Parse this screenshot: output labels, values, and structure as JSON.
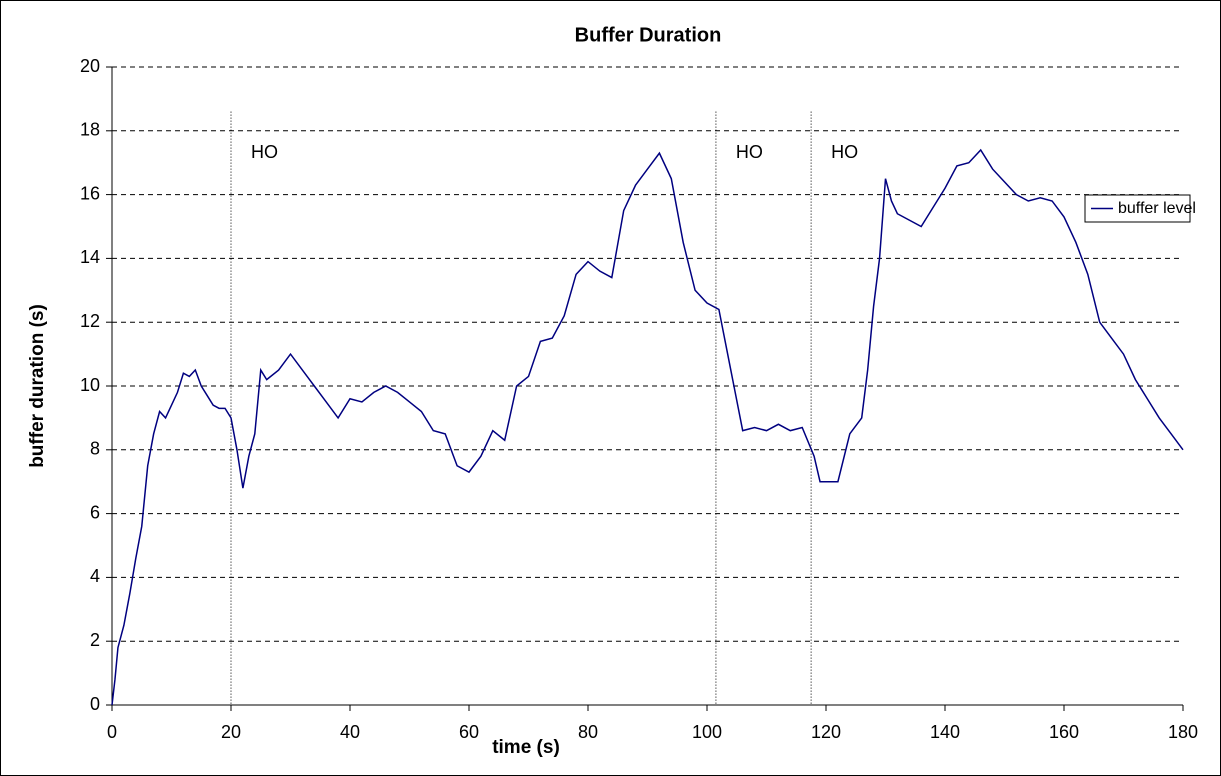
{
  "chart_data": {
    "type": "line",
    "title": "Buffer Duration",
    "x_label": "time (s)",
    "y_label": "buffer duration (s)",
    "x": [
      0,
      0.5,
      1,
      2,
      3,
      4,
      5,
      6,
      7,
      8,
      9,
      10,
      11,
      12,
      13,
      14,
      15,
      16,
      17,
      18,
      19,
      20,
      21,
      22,
      23,
      24,
      25,
      26,
      28,
      30,
      32,
      34,
      36,
      38,
      40,
      42,
      44,
      46,
      48,
      50,
      52,
      54,
      56,
      58,
      60,
      62,
      64,
      66,
      68,
      70,
      72,
      74,
      76,
      78,
      80,
      82,
      84,
      86,
      88,
      90,
      92,
      94,
      96,
      98,
      100,
      102,
      104,
      106,
      108,
      110,
      112,
      114,
      116,
      118,
      119,
      120,
      122,
      124,
      126,
      127,
      128,
      129,
      130,
      131,
      132,
      134,
      136,
      138,
      140,
      142,
      144,
      146,
      148,
      150,
      152,
      154,
      156,
      158,
      160,
      162,
      164,
      166,
      168,
      170,
      172,
      174,
      176,
      178,
      180
    ],
    "series": [
      {
        "name": "buffer level",
        "color": "#000080",
        "values": [
          0,
          0.8,
          1.8,
          2.5,
          3.5,
          4.6,
          5.6,
          7.5,
          8.5,
          9.2,
          9.0,
          9.4,
          9.8,
          10.4,
          10.3,
          10.5,
          10.0,
          9.7,
          9.4,
          9.3,
          9.3,
          9.0,
          8.0,
          6.8,
          7.8,
          8.5,
          10.5,
          10.2,
          10.5,
          11.0,
          10.5,
          10.0,
          9.5,
          9.0,
          9.6,
          9.5,
          9.8,
          10.0,
          9.8,
          9.5,
          9.2,
          8.6,
          8.5,
          7.5,
          7.3,
          7.8,
          8.6,
          8.3,
          10.0,
          10.3,
          11.4,
          11.5,
          12.2,
          13.5,
          13.9,
          13.6,
          13.4,
          15.5,
          16.3,
          16.8,
          17.3,
          16.5,
          14.5,
          13.0,
          12.6,
          12.4,
          10.5,
          8.6,
          8.7,
          8.6,
          8.8,
          8.6,
          8.7,
          7.8,
          7.0,
          7.0,
          7.0,
          8.5,
          9.0,
          10.5,
          12.5,
          14.0,
          16.5,
          15.8,
          15.4,
          15.2,
          15.0,
          15.6,
          16.2,
          16.9,
          17.0,
          17.4,
          16.8,
          16.4,
          16.0,
          15.8,
          15.9,
          15.8,
          15.3,
          14.5,
          13.5,
          12.0,
          11.5,
          11.0,
          10.2,
          9.6,
          9.0,
          8.5,
          8.0
        ]
      }
    ],
    "xlim": [
      0,
      180
    ],
    "xticks": [
      0,
      20,
      40,
      60,
      80,
      100,
      120,
      140,
      160,
      180
    ],
    "ylim": [
      0,
      20
    ],
    "yticks": [
      0,
      2,
      4,
      6,
      8,
      10,
      12,
      14,
      16,
      18,
      20
    ],
    "grid": true,
    "legend": "right",
    "annotations": [
      {
        "text": "HO",
        "x": 20
      },
      {
        "text": "HO",
        "x": 101.5
      },
      {
        "text": "HO",
        "x": 117.5
      }
    ]
  }
}
